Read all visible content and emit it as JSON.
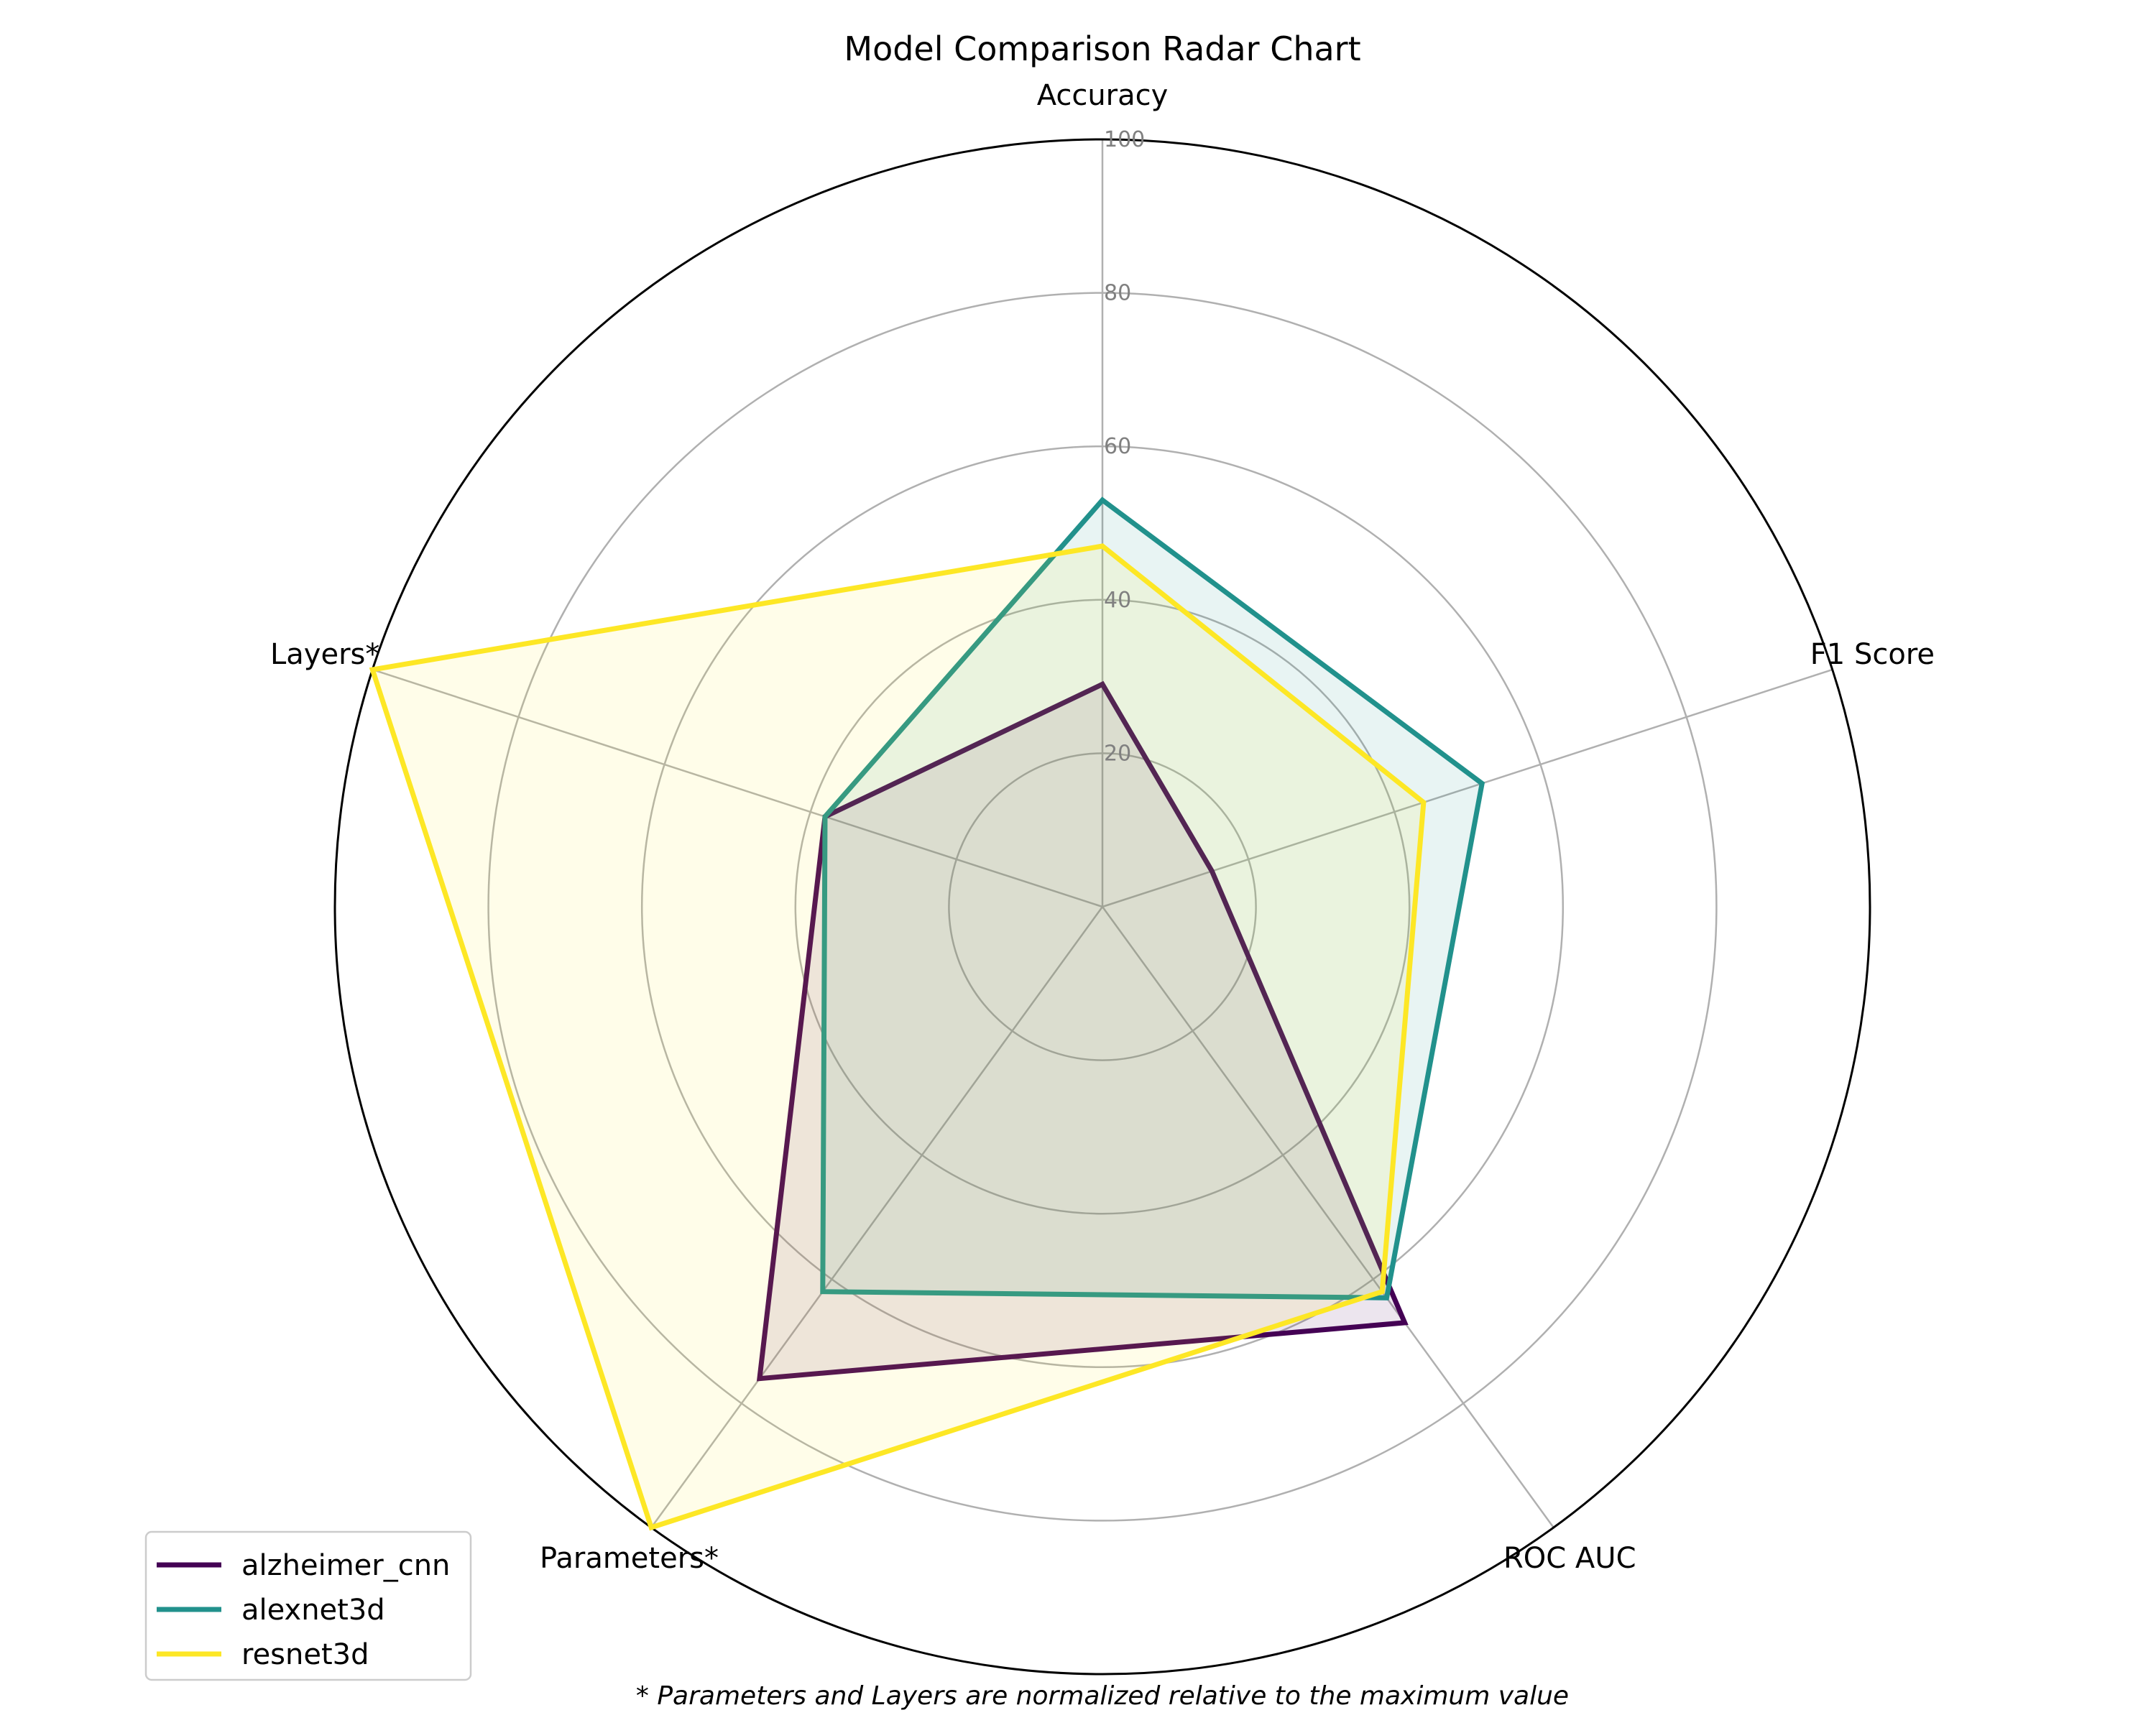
{
  "chart_data": {
    "type": "radar",
    "title": "Model Comparison Radar Chart",
    "axes": [
      "Accuracy",
      "F1 Score",
      "ROC AUC",
      "Parameters*",
      "Layers*"
    ],
    "rlim": [
      0,
      100
    ],
    "rticks": [
      20,
      40,
      60,
      80,
      100
    ],
    "rtick_labels": [
      "20",
      "40",
      "60",
      "80",
      "100"
    ],
    "grid": true,
    "legend_position": "lower-left",
    "series": [
      {
        "name": "alzheimer_cnn",
        "color": "#440154",
        "values": [
          29,
          15,
          67,
          76,
          38
        ]
      },
      {
        "name": "alexnet3d",
        "color": "#21918c",
        "values": [
          53,
          52,
          63,
          62,
          38
        ]
      },
      {
        "name": "resnet3d",
        "color": "#fde725",
        "values": [
          47,
          44,
          62,
          100,
          100
        ]
      }
    ],
    "footnote": "* Parameters and Layers are normalized relative to the maximum value"
  }
}
